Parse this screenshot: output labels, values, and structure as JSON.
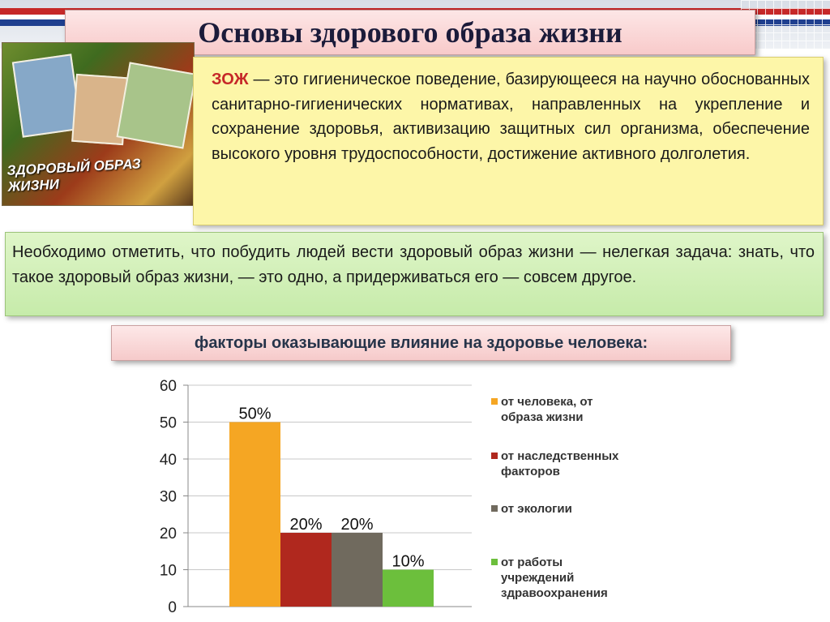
{
  "title": "Основы здорового образа жизни",
  "photo": {
    "caption": "ЗДОРОВЫЙ ОБРАЗ ЖИЗНИ"
  },
  "definition": {
    "term": "ЗОЖ",
    "text": " — это гигиеническое поведение, базирующееся на научно обоснованных санитарно-гигиенических нормативах, направленных на укрепление и сохранение здоровья, активизацию защитных сил организма, обеспечение высокого уровня трудоспособности, достижение активного долголетия."
  },
  "note": "Необходимо отметить, что побудить людей вести здоровый образ жизни — нелегкая задача: знать, что такое здоровый образ жизни, — это одно, а придерживаться его — совсем другое.",
  "factors_heading": "факторы оказывающие влияние на здоровье человека:",
  "chart_data": {
    "type": "bar",
    "title": "",
    "xlabel": "",
    "ylabel": "",
    "ylim": [
      0,
      60
    ],
    "yticks": [
      "0",
      "10",
      "20",
      "30",
      "40",
      "50",
      "60"
    ],
    "grid": true,
    "legend_position": "right",
    "series": [
      {
        "name": "от человека, от образа жизни",
        "value": 50,
        "label": "50%",
        "color": "#f5a623"
      },
      {
        "name": "от наследственных факторов",
        "value": 20,
        "label": "20%",
        "color": "#b0281e"
      },
      {
        "name": "от экологии",
        "value": 20,
        "label": "20%",
        "color": "#706a5e"
      },
      {
        "name": "от работы учреждений здравоохранения",
        "value": 10,
        "label": "10%",
        "color": "#6cbf3c"
      }
    ]
  },
  "legend": {
    "items": [
      {
        "lines": [
          "от человека, от",
          "образа жизни"
        ]
      },
      {
        "lines": [
          "от наследственных",
          "факторов"
        ]
      },
      {
        "lines": [
          "от экологии"
        ]
      },
      {
        "lines": [
          "от работы",
          "учреждений",
          "здравоохранения"
        ]
      }
    ]
  }
}
